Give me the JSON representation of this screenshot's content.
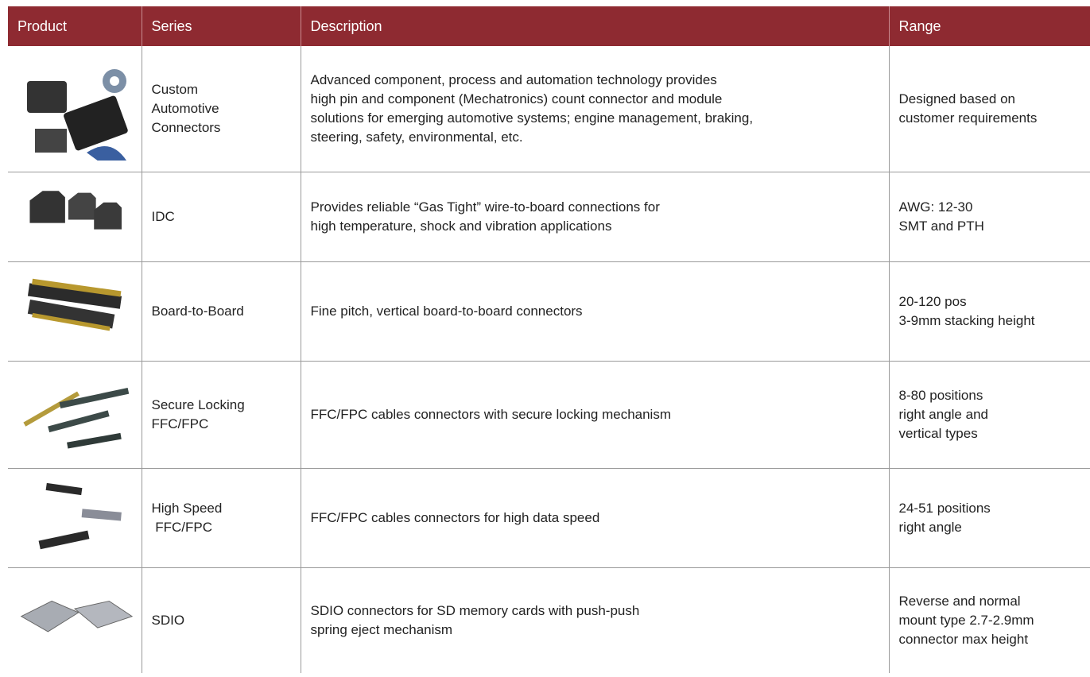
{
  "table": {
    "header": [
      "Product",
      "Series",
      "Description",
      "Range"
    ],
    "rows": [
      {
        "series": [
          "Custom",
          "Automotive",
          "Connectors"
        ],
        "description": [
          "Advanced component, process and automation technology provides",
          "high pin and component (Mechatronics) count connector and module",
          "solutions for emerging automotive systems; engine management, braking,",
          "steering, safety, environmental, etc."
        ],
        "range": [
          "Designed based on",
          "customer requirements"
        ]
      },
      {
        "series": [
          "IDC"
        ],
        "description": [
          "Provides reliable “Gas Tight” wire-to-board connections for",
          "high temperature, shock and vibration applications"
        ],
        "range": [
          "AWG: 12-30",
          "SMT and PTH"
        ]
      },
      {
        "series": [
          "Board-to-Board"
        ],
        "description": [
          "Fine pitch, vertical board-to-board connectors"
        ],
        "range": [
          "20-120 pos",
          "3-9mm stacking height"
        ]
      },
      {
        "series": [
          "Secure Locking",
          "FFC/FPC"
        ],
        "description": [
          "FFC/FPC cables connectors with secure locking mechanism"
        ],
        "range": [
          "8-80 positions",
          "right angle and",
          "vertical types"
        ]
      },
      {
        "series": [
          "High Speed",
          " FFC/FPC"
        ],
        "description": [
          "FFC/FPC cables connectors for high data speed"
        ],
        "range": [
          "24-51 positions",
          "right angle"
        ]
      },
      {
        "series": [
          "SDIO"
        ],
        "description": [
          "SDIO connectors for SD memory cards with push-push",
          "spring eject mechanism"
        ],
        "range": [
          "Reverse and normal",
          "mount type 2.7-2.9mm",
          "connector max height"
        ]
      }
    ]
  }
}
